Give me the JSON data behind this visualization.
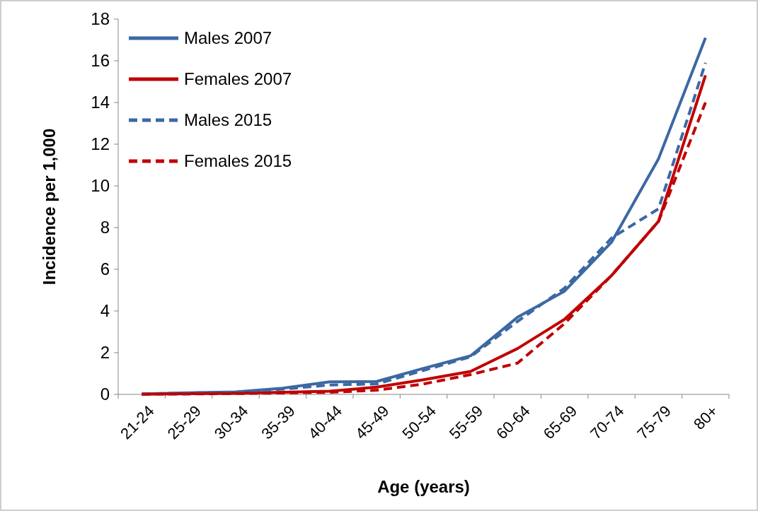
{
  "chart_data": {
    "type": "line",
    "xlabel": "Age (years)",
    "ylabel": "Incidence per 1,000",
    "categories": [
      "21-24",
      "25-29",
      "30-34",
      "35-39",
      "40-44",
      "45-49",
      "50-54",
      "55-59",
      "60-64",
      "65-69",
      "70-74",
      "75-79",
      "80+"
    ],
    "ylim": [
      0,
      18
    ],
    "yticks": [
      0,
      2,
      4,
      6,
      8,
      10,
      12,
      14,
      16,
      18
    ],
    "grid": false,
    "legend": "top left",
    "series": [
      {
        "name": "Males 2007",
        "color": "#3c68a4",
        "line_style": "solid",
        "values": [
          0.02,
          0.08,
          0.12,
          0.3,
          0.6,
          0.62,
          1.25,
          1.85,
          3.7,
          4.95,
          7.3,
          11.3,
          17.1
        ]
      },
      {
        "name": "Females 2007",
        "color": "#c00000",
        "line_style": "solid",
        "values": [
          0.01,
          0.03,
          0.05,
          0.1,
          0.15,
          0.35,
          0.7,
          1.1,
          2.2,
          3.6,
          5.7,
          8.3,
          15.3
        ]
      },
      {
        "name": "Males 2015",
        "color": "#3c68a4",
        "line_style": "dashed",
        "values": [
          0.02,
          0.07,
          0.1,
          0.25,
          0.45,
          0.5,
          1.15,
          1.8,
          3.5,
          5.1,
          7.5,
          8.9,
          15.9
        ]
      },
      {
        "name": "Females 2015",
        "color": "#c00000",
        "line_style": "dashed",
        "values": [
          0.01,
          0.02,
          0.04,
          0.07,
          0.1,
          0.2,
          0.5,
          0.95,
          1.5,
          3.4,
          5.7,
          8.3,
          14.0
        ]
      }
    ]
  }
}
